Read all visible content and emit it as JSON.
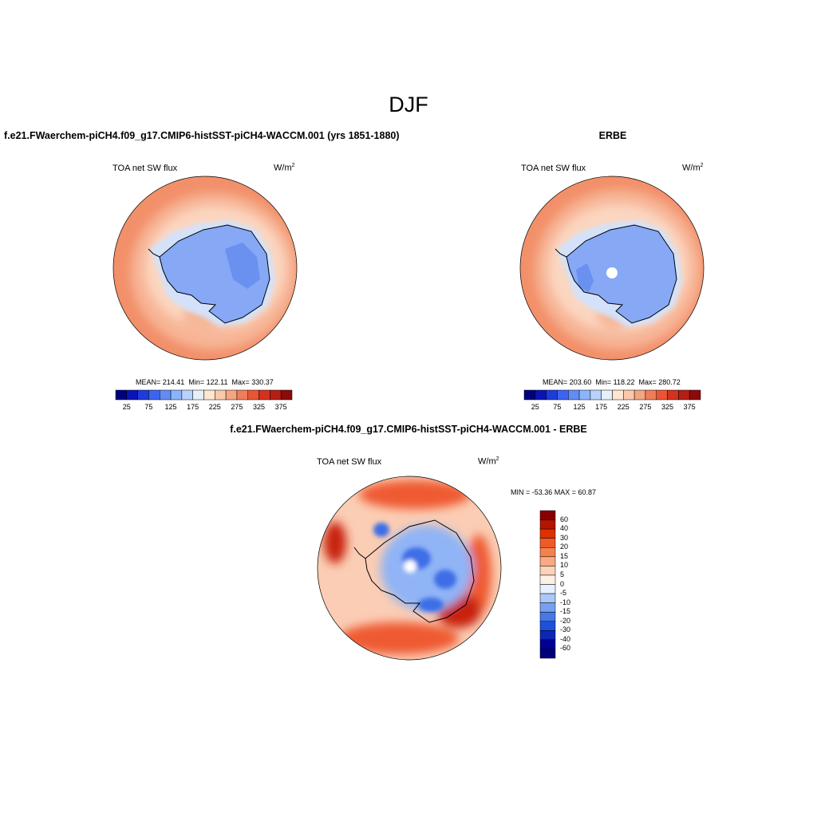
{
  "title": "DJF",
  "panels": {
    "model": {
      "title": "f.e21.FWaerchem-piCH4.f09_g17.CMIP6-histSST-piCH4-WACCM.001 (yrs 1851-1880)",
      "variable": "TOA net SW flux",
      "units_base": "W/m",
      "units_exp": "2",
      "stats": {
        "mean_label": "MEAN=",
        "mean": "214.41",
        "min_label": "Min=",
        "min": "122.11",
        "max_label": "Max=",
        "max": "330.37"
      }
    },
    "obs": {
      "title": "ERBE",
      "variable": "TOA net SW flux",
      "units_base": "W/m",
      "units_exp": "2",
      "stats": {
        "mean_label": "MEAN=",
        "mean": "203.60",
        "min_label": "Min=",
        "min": "118.22",
        "max_label": "Max=",
        "max": "280.72"
      }
    },
    "diff": {
      "title": "f.e21.FWaerchem-piCH4.f09_g17.CMIP6-histSST-piCH4-WACCM.001 - ERBE",
      "variable": "TOA net SW flux",
      "units_base": "W/m",
      "units_exp": "2",
      "range_text": "MIN = -53.36 MAX =  60.87"
    }
  },
  "colorbars": {
    "abs": {
      "ticks": [
        "25",
        "75",
        "125",
        "175",
        "225",
        "275",
        "325",
        "375"
      ],
      "colors": [
        "#00007d",
        "#0a14b4",
        "#1e3cdc",
        "#3c64f0",
        "#648cf5",
        "#8cb4fa",
        "#b9d2fa",
        "#e6f0fa",
        "#fde6d2",
        "#fac8aa",
        "#f5a582",
        "#f07d5a",
        "#eb5532",
        "#d2321e",
        "#b41e14",
        "#8c0a0a"
      ]
    },
    "diff": {
      "ticks": [
        "60",
        "40",
        "30",
        "20",
        "15",
        "10",
        "5",
        "0",
        "-5",
        "-10",
        "-15",
        "-20",
        "-30",
        "-40",
        "-60"
      ],
      "colors": [
        "#870000",
        "#b41400",
        "#dc3200",
        "#f05a28",
        "#f5824e",
        "#f8aa82",
        "#fcd2b9",
        "#fff0e6",
        "#e6f0ff",
        "#aac8f8",
        "#78a0f0",
        "#4678e6",
        "#1e50dc",
        "#0a28b4",
        "#000096",
        "#000078"
      ]
    }
  },
  "map_colors": {
    "ocean_far": "#f2906a",
    "ocean_mid": "#f7b596",
    "ocean_near": "#fbd6c0",
    "ice_edge": "#d3e2fa",
    "land": "#86a8f5",
    "land_dark": "#6a90f0",
    "diff_base": "#fbcdb4",
    "diff_warm": "#ef5a30",
    "diff_hot": "#c8200a",
    "diff_cool": "#90b4f6",
    "diff_cold": "#3c6ee6"
  }
}
